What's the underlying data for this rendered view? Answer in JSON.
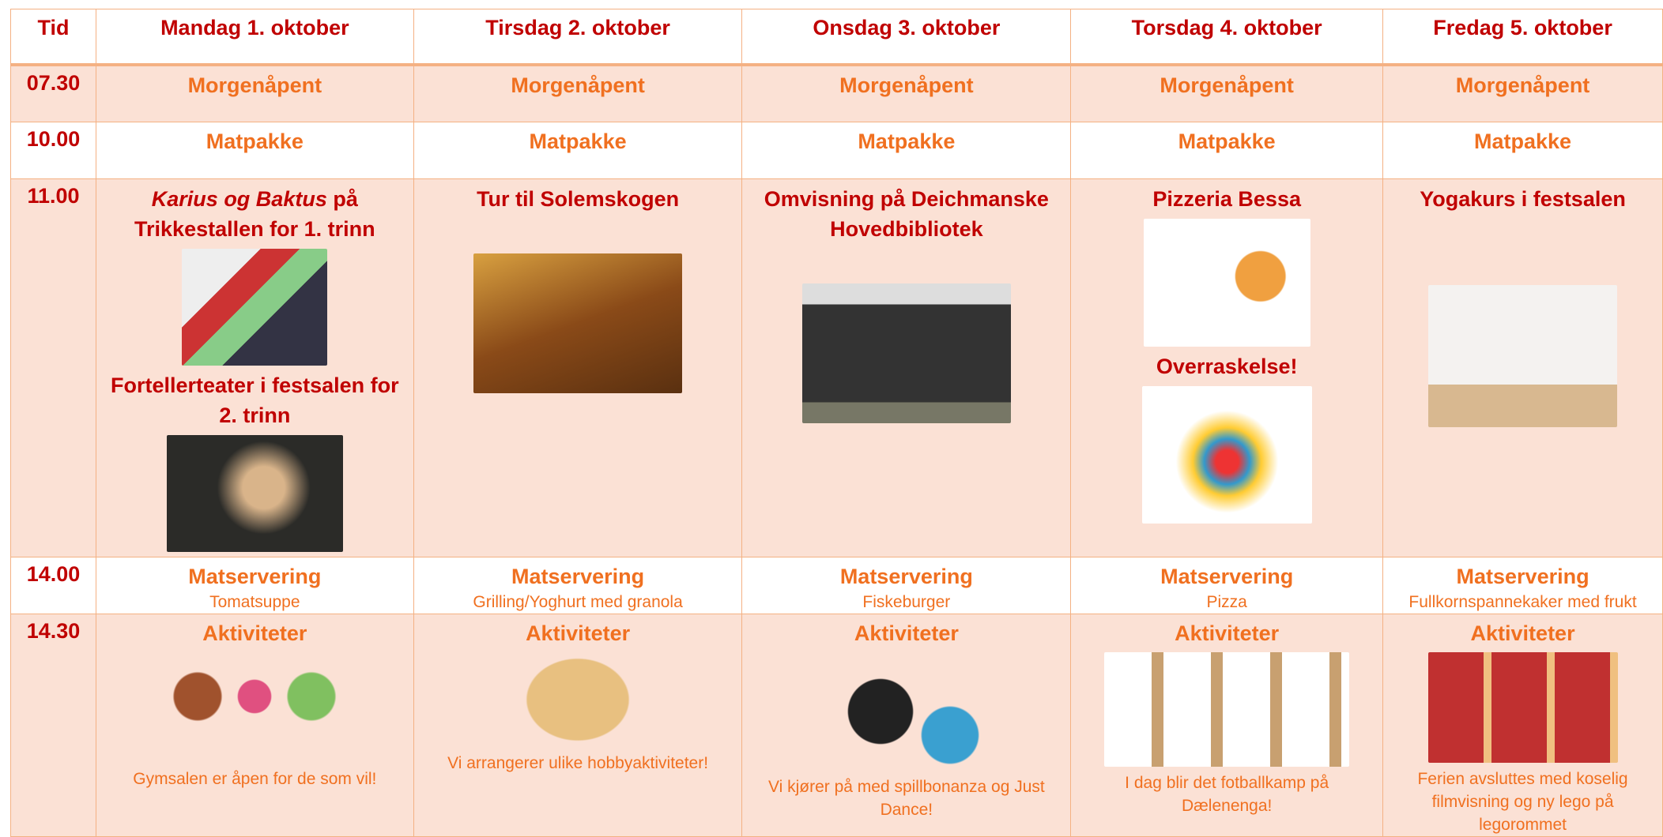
{
  "header": [
    "Tid",
    "Mandag 1. oktober",
    "Tirsdag 2. oktober",
    "Onsdag 3. oktober",
    "Torsdag 4. oktober",
    "Fredag 5. oktober"
  ],
  "rows": [
    {
      "time": "07.30",
      "cells": [
        {
          "blocks": [
            {
              "heading": "Morgenåpent"
            }
          ]
        },
        {
          "blocks": [
            {
              "heading": "Morgenåpent"
            }
          ]
        },
        {
          "blocks": [
            {
              "heading": "Morgenåpent"
            }
          ]
        },
        {
          "blocks": [
            {
              "heading": "Morgenåpent"
            }
          ]
        },
        {
          "blocks": [
            {
              "heading": "Morgenåpent"
            }
          ]
        }
      ]
    },
    {
      "time": "10.00",
      "cells": [
        {
          "blocks": [
            {
              "heading": "Matpakke"
            }
          ]
        },
        {
          "blocks": [
            {
              "heading": "Matpakke"
            }
          ]
        },
        {
          "blocks": [
            {
              "heading": "Matpakke"
            }
          ]
        },
        {
          "blocks": [
            {
              "heading": "Matpakke"
            }
          ]
        },
        {
          "blocks": [
            {
              "heading": "Matpakke"
            }
          ]
        }
      ]
    },
    {
      "time": "11.00",
      "cells": [
        {
          "blocks": [
            {
              "emphasis": "Karius og Baktus",
              "heading": " på Trikkestallen for 1. trinn"
            },
            {
              "heading": "Fortellerteater i festsalen for 2. trinn"
            }
          ]
        },
        {
          "blocks": [
            {
              "heading": "Tur til Solemskogen"
            }
          ]
        },
        {
          "blocks": [
            {
              "heading": "Omvisning på Deichmanske Hovedbibliotek"
            }
          ]
        },
        {
          "blocks": [
            {
              "heading": "Pizzeria Bessa"
            },
            {
              "heading": "Overraskelse!"
            }
          ]
        },
        {
          "blocks": [
            {
              "heading": "Yogakurs i festsalen"
            }
          ]
        }
      ]
    },
    {
      "time": "14.00",
      "cells": [
        {
          "blocks": [
            {
              "heading": "Matservering"
            }
          ],
          "note": "Tomatsuppe"
        },
        {
          "blocks": [
            {
              "heading": "Matservering"
            }
          ],
          "note": "Grilling/Yoghurt med granola"
        },
        {
          "blocks": [
            {
              "heading": "Matservering"
            }
          ],
          "note": "Fiskeburger"
        },
        {
          "blocks": [
            {
              "heading": "Matservering"
            }
          ],
          "note": "Pizza"
        },
        {
          "blocks": [
            {
              "heading": "Matservering"
            }
          ],
          "note": "Fullkornspannekaker med frukt"
        }
      ]
    },
    {
      "time": "14.30",
      "cells": [
        {
          "blocks": [
            {
              "heading": "Aktiviteter"
            }
          ],
          "note": "Gymsalen er åpen for de som vil!"
        },
        {
          "blocks": [
            {
              "heading": "Aktiviteter"
            }
          ],
          "note": "Vi arrangerer ulike hobbyaktiviteter!"
        },
        {
          "blocks": [
            {
              "heading": "Aktiviteter"
            }
          ],
          "note": "Vi kjører på med spillbonanza og Just Dance!"
        },
        {
          "blocks": [
            {
              "heading": "Aktiviteter"
            }
          ],
          "note": "I dag blir det fotballkamp på Dælenenga!"
        },
        {
          "blocks": [
            {
              "heading": "Aktiviteter"
            }
          ],
          "note": "Ferien avsluttes med koselig filmvisning og ny lego på legorommet"
        }
      ]
    }
  ]
}
